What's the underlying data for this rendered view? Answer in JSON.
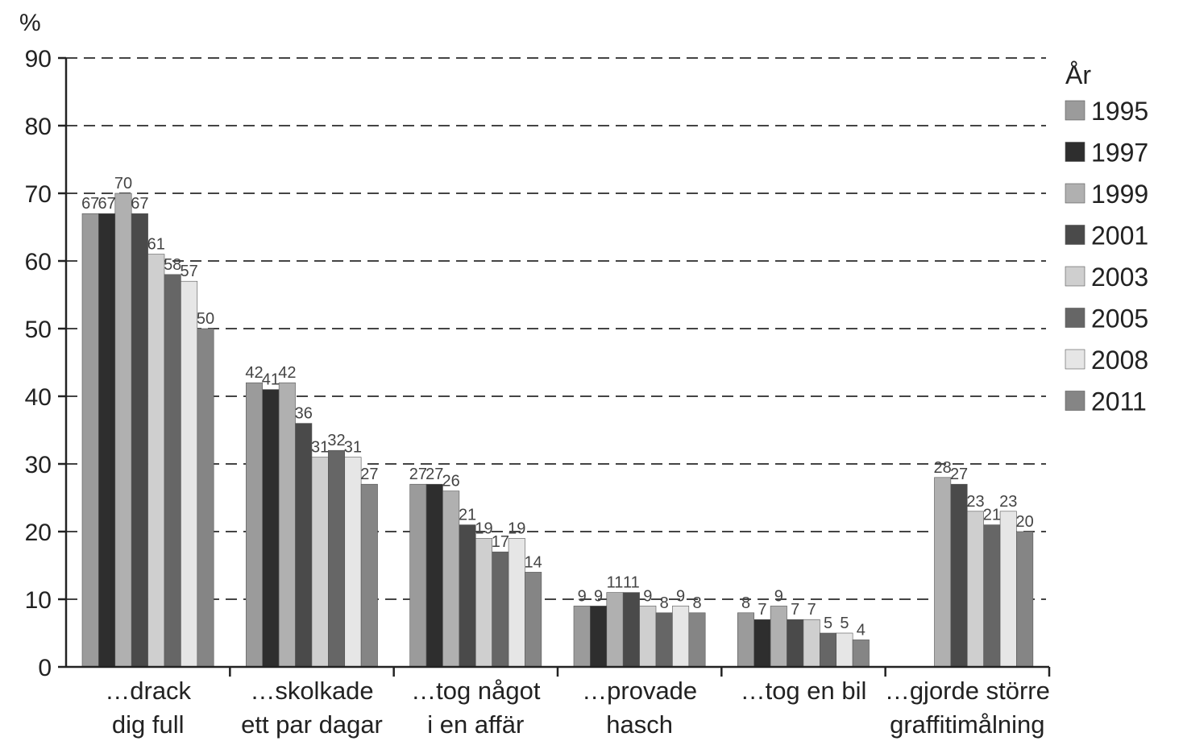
{
  "chart_data": {
    "type": "bar",
    "ylabel": "%",
    "ylim": [
      0,
      90
    ],
    "yticks": [
      0,
      10,
      20,
      30,
      40,
      50,
      60,
      70,
      80,
      90
    ],
    "grid": true,
    "legend": {
      "title": "År",
      "placement": "right"
    },
    "categories": [
      [
        "…drack",
        "dig full"
      ],
      [
        "…skolkade",
        "ett par dagar"
      ],
      [
        "…tog något",
        "i en affär"
      ],
      [
        "…provade",
        "hasch"
      ],
      [
        "…tog en bil",
        ""
      ],
      [
        "…gjorde större",
        "graffitimålning"
      ]
    ],
    "series": [
      {
        "name": "1995",
        "color": "#9b9b9b",
        "values": [
          67,
          42,
          27,
          9,
          8,
          null
        ]
      },
      {
        "name": "1997",
        "color": "#2e2e2e",
        "values": [
          67,
          41,
          27,
          9,
          7,
          null
        ]
      },
      {
        "name": "1999",
        "color": "#b0b0b0",
        "values": [
          70,
          42,
          26,
          11,
          9,
          28
        ]
      },
      {
        "name": "2001",
        "color": "#4a4a4a",
        "values": [
          67,
          36,
          21,
          11,
          7,
          27
        ]
      },
      {
        "name": "2003",
        "color": "#cfcfcf",
        "values": [
          61,
          31,
          19,
          9,
          7,
          23
        ]
      },
      {
        "name": "2005",
        "color": "#666666",
        "values": [
          58,
          32,
          17,
          8,
          5,
          21
        ]
      },
      {
        "name": "2008",
        "color": "#e6e6e6",
        "values": [
          57,
          31,
          19,
          9,
          5,
          23
        ]
      },
      {
        "name": "2011",
        "color": "#858585",
        "values": [
          50,
          27,
          14,
          8,
          4,
          20
        ]
      }
    ]
  }
}
